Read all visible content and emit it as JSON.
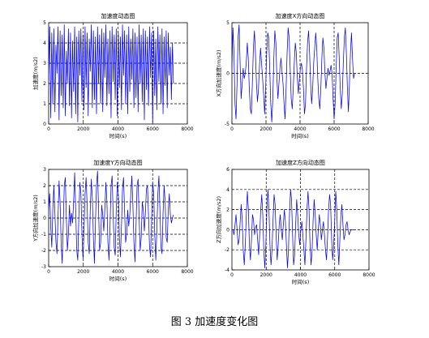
{
  "caption": "图 3  加速度变化图",
  "chart_data": [
    {
      "type": "line",
      "title": "加速度动态图",
      "xlabel": "时间(s)",
      "ylabel": "加速度(m/s2)",
      "xlim": [
        0,
        8000
      ],
      "ylim": [
        0,
        5
      ],
      "xticks": [
        "0",
        "2000",
        "4000",
        "6000",
        "8000"
      ],
      "yticks": [
        "0",
        "1",
        "2",
        "3",
        "4",
        "5"
      ],
      "grid": true,
      "series": [
        {
          "color": "#0000ff",
          "x": [
            0,
            60,
            120,
            180,
            240,
            300,
            360,
            420,
            480,
            540,
            600,
            660,
            720,
            780,
            840,
            900,
            960,
            1020,
            1080,
            1140,
            1200,
            1260,
            1320,
            1380,
            1440,
            1500,
            1560,
            1620,
            1680,
            1740,
            1800,
            1860,
            1920,
            1980,
            2040,
            2100,
            2160,
            2220,
            2280,
            2340,
            2400,
            2460,
            2520,
            2580,
            2640,
            2700,
            2760,
            2820,
            2880,
            2940,
            3000,
            3060,
            3120,
            3180,
            3240,
            3300,
            3360,
            3420,
            3480,
            3540,
            3600,
            3660,
            3720,
            3780,
            3840,
            3900,
            3960,
            4020,
            4080,
            4140,
            4200,
            4260,
            4320,
            4380,
            4440,
            4500,
            4560,
            4620,
            4680,
            4740,
            4800,
            4860,
            4920,
            4980,
            5040,
            5100,
            5160,
            5220,
            5280,
            5340,
            5400,
            5460,
            5520,
            5580,
            5640,
            5700,
            5760,
            5820,
            5880,
            5940,
            6000,
            6060,
            6120,
            6180,
            6240,
            6300,
            6360,
            6420,
            6480,
            6540,
            6600,
            6660,
            6720,
            6780,
            6840,
            6900,
            6960,
            7020,
            7080,
            7140,
            7200
          ],
          "y": [
            2.2,
            4.8,
            0.3,
            4.5,
            1.0,
            4.7,
            0.6,
            3.9,
            2.5,
            4.8,
            0.2,
            4.6,
            1.4,
            4.4,
            0.8,
            4.9,
            0.4,
            3.6,
            2.0,
            4.7,
            0.9,
            4.5,
            0.3,
            4.1,
            1.6,
            4.8,
            0.5,
            4.3,
            0.1,
            4.6,
            2.4,
            4.7,
            1.1,
            4.4,
            0.7,
            4.8,
            1.8,
            4.5,
            0.4,
            4.2,
            2.6,
            4.9,
            0.8,
            4.6,
            1.2,
            4.3,
            0.5,
            4.8,
            2.0,
            4.4,
            1.0,
            4.7,
            0.6,
            4.5,
            2.3,
            4.9,
            0.9,
            4.2,
            1.5,
            4.6,
            0.3,
            4.8,
            2.1,
            4.4,
            1.2,
            4.7,
            0.4,
            4.5,
            1.8,
            4.3,
            0.7,
            4.9,
            2.4,
            4.6,
            1.0,
            4.4,
            0.5,
            4.8,
            1.6,
            4.2,
            2.2,
            4.7,
            0.8,
            4.5,
            1.3,
            4.3,
            0.6,
            4.9,
            2.0,
            4.4,
            1.1,
            4.7,
            0.2,
            4.6,
            1.7,
            4.3,
            0.9,
            4.8,
            2.3,
            4.5,
            0.0,
            4.6,
            1.4,
            4.2,
            0.7,
            4.8,
            2.1,
            4.4,
            1.0,
            4.7,
            0.5,
            4.3,
            1.9,
            4.6,
            0.8,
            4.5,
            2.4,
            3.8,
            1.2,
            4.0,
            2.0
          ]
        }
      ]
    },
    {
      "type": "line",
      "title": "加速度X方向动态图",
      "xlabel": "时间(s)",
      "ylabel": "X方向加速度(m/s2)",
      "xlim": [
        0,
        8000
      ],
      "ylim": [
        -5,
        5
      ],
      "xticks": [
        "0",
        "2000",
        "4000",
        "6000",
        "8000"
      ],
      "yticks": [
        "-5",
        "0",
        "5"
      ],
      "grid": true,
      "series": [
        {
          "color": "#0000ff",
          "x": [
            0,
            60,
            120,
            180,
            240,
            300,
            360,
            420,
            480,
            540,
            600,
            660,
            720,
            780,
            840,
            900,
            960,
            1020,
            1080,
            1140,
            1200,
            1260,
            1320,
            1380,
            1440,
            1500,
            1560,
            1620,
            1680,
            1740,
            1800,
            1860,
            1920,
            1980,
            2040,
            2100,
            2160,
            2220,
            2280,
            2340,
            2400,
            2460,
            2520,
            2580,
            2640,
            2700,
            2760,
            2820,
            2880,
            2940,
            3000,
            3060,
            3120,
            3180,
            3240,
            3300,
            3360,
            3420,
            3480,
            3540,
            3600,
            3660,
            3720,
            3780,
            3840,
            3900,
            3960,
            4020,
            4080,
            4140,
            4200,
            4260,
            4320,
            4380,
            4440,
            4500,
            4560,
            4620,
            4680,
            4740,
            4800,
            4860,
            4920,
            4980,
            5040,
            5100,
            5160,
            5220,
            5280,
            5340,
            5400,
            5460,
            5520,
            5580,
            5640,
            5700,
            5760,
            5820,
            5880,
            5940,
            6000,
            6060,
            6120,
            6180,
            6240,
            6300,
            6360,
            6420,
            6480,
            6540,
            6600,
            6660,
            6720,
            6780,
            6840,
            6900,
            6960,
            7020,
            7080,
            7140,
            7200
          ],
          "y": [
            0.5,
            4.5,
            2.0,
            -3.0,
            -4.5,
            -1.0,
            3.5,
            4.8,
            1.0,
            -2.5,
            -1.0,
            0.5,
            -0.5,
            0.0,
            1.0,
            3.0,
            1.5,
            -1.5,
            -3.5,
            -4.0,
            -1.0,
            2.5,
            4.2,
            2.0,
            -1.0,
            -2.8,
            -1.5,
            0.8,
            2.5,
            1.0,
            -0.5,
            -2.0,
            -4.0,
            -1.5,
            2.0,
            4.0,
            3.5,
            0.5,
            -3.0,
            -4.8,
            -2.5,
            1.5,
            4.2,
            3.0,
            -0.5,
            -2.5,
            -1.0,
            0.5,
            1.5,
            0.2,
            -1.0,
            -3.0,
            -4.5,
            -1.5,
            2.0,
            4.5,
            3.5,
            0.5,
            -2.5,
            -3.5,
            -1.5,
            1.0,
            3.0,
            2.0,
            -0.5,
            -2.0,
            -0.5,
            0.5,
            1.0,
            0.3,
            -1.5,
            -4.0,
            -3.0,
            0.5,
            3.0,
            4.2,
            2.0,
            -1.0,
            -3.0,
            -1.5,
            1.0,
            2.5,
            4.0,
            2.5,
            -0.5,
            -2.5,
            -3.5,
            -1.5,
            1.5,
            3.5,
            2.5,
            0.0,
            -1.5,
            -0.5,
            0.5,
            -0.2,
            0.2,
            0.8,
            0.0,
            -2.5,
            -4.5,
            -3.0,
            0.5,
            3.5,
            4.0,
            1.5,
            -1.5,
            -3.5,
            -2.0,
            1.0,
            3.5,
            4.5,
            2.0,
            -1.5,
            -3.8,
            -1.0,
            2.0,
            4.0,
            1.5,
            -0.5,
            0.0
          ]
        }
      ]
    },
    {
      "type": "line",
      "title": "加速度Y方向动态图",
      "xlabel": "时间(s)",
      "ylabel": "Y方向加速度(m/s2)",
      "xlim": [
        0,
        8000
      ],
      "ylim": [
        -3,
        3
      ],
      "xticks": [
        "0",
        "2000",
        "4000",
        "6000",
        "8000"
      ],
      "yticks": [
        "-3",
        "-2",
        "-1",
        "0",
        "1",
        "2",
        "3"
      ],
      "grid": true,
      "series": [
        {
          "color": "#0000ff",
          "x": [
            0,
            60,
            120,
            180,
            240,
            300,
            360,
            420,
            480,
            540,
            600,
            660,
            720,
            780,
            840,
            900,
            960,
            1020,
            1080,
            1140,
            1200,
            1260,
            1320,
            1380,
            1440,
            1500,
            1560,
            1620,
            1680,
            1740,
            1800,
            1860,
            1920,
            1980,
            2040,
            2100,
            2160,
            2220,
            2280,
            2340,
            2400,
            2460,
            2520,
            2580,
            2640,
            2700,
            2760,
            2820,
            2880,
            2940,
            3000,
            3060,
            3120,
            3180,
            3240,
            3300,
            3360,
            3420,
            3480,
            3540,
            3600,
            3660,
            3720,
            3780,
            3840,
            3900,
            3960,
            4020,
            4080,
            4140,
            4200,
            4260,
            4320,
            4380,
            4440,
            4500,
            4560,
            4620,
            4680,
            4740,
            4800,
            4860,
            4920,
            4980,
            5040,
            5100,
            5160,
            5220,
            5280,
            5340,
            5400,
            5460,
            5520,
            5580,
            5640,
            5700,
            5760,
            5820,
            5880,
            5940,
            6000,
            6060,
            6120,
            6180,
            6240,
            6300,
            6360,
            6420,
            6480,
            6540,
            6600,
            6660,
            6720,
            6780,
            6840,
            6900,
            6960,
            7020,
            7080,
            7140,
            7200
          ],
          "y": [
            0.5,
            1.5,
            -0.5,
            -1.8,
            0.5,
            2.0,
            0.3,
            -1.5,
            -2.2,
            0.0,
            2.3,
            1.0,
            -1.5,
            -2.8,
            -0.5,
            2.0,
            2.5,
            0.0,
            -2.0,
            -1.0,
            0.8,
            -0.5,
            0.3,
            -0.3,
            1.0,
            2.8,
            0.5,
            -2.0,
            -2.6,
            0.0,
            2.2,
            1.5,
            -1.0,
            -2.5,
            -0.8,
            1.5,
            2.5,
            0.8,
            -1.5,
            -2.2,
            0.5,
            2.4,
            1.2,
            -1.2,
            -2.8,
            -0.3,
            2.0,
            2.9,
            0.5,
            -2.0,
            -1.5,
            0.8,
            0.2,
            -0.8,
            0.5,
            2.2,
            1.0,
            -1.5,
            -2.6,
            -0.5,
            2.0,
            2.6,
            0.3,
            -1.8,
            -2.3,
            0.5,
            2.2,
            1.4,
            -1.2,
            -2.4,
            -0.5,
            1.8,
            2.5,
            0.5,
            -1.5,
            -1.0,
            0.5,
            -0.5,
            0.2,
            1.5,
            2.6,
            0.8,
            -1.5,
            -2.7,
            -0.5,
            2.0,
            2.4,
            0.0,
            -2.0,
            -1.2,
            1.0,
            0.5,
            -0.8,
            0.3,
            1.8,
            2.0,
            0.2,
            -1.8,
            -2.4,
            0.0,
            2.2,
            1.5,
            -1.0,
            -2.6,
            -0.8,
            1.5,
            2.6,
            0.5,
            -1.8,
            -2.2,
            0.3,
            2.0,
            1.0,
            -1.2,
            -1.5,
            0.5,
            1.5,
            0.2,
            -0.3,
            0.0,
            0.2
          ]
        }
      ]
    },
    {
      "type": "line",
      "title": "加速度Z方向动态图",
      "xlabel": "时间(s)",
      "ylabel": "Z方向加速度(m/s2)",
      "xlim": [
        0,
        8000
      ],
      "ylim": [
        -4,
        6
      ],
      "xticks": [
        "0",
        "2000",
        "4000",
        "6000",
        "8000"
      ],
      "yticks": [
        "-4",
        "-2",
        "0",
        "2",
        "4",
        "6"
      ],
      "grid": true,
      "series": [
        {
          "color": "#0000ff",
          "x": [
            0,
            60,
            120,
            180,
            240,
            300,
            360,
            420,
            480,
            540,
            600,
            660,
            720,
            780,
            840,
            900,
            960,
            1020,
            1080,
            1140,
            1200,
            1260,
            1320,
            1380,
            1440,
            1500,
            1560,
            1620,
            1680,
            1740,
            1800,
            1860,
            1920,
            1980,
            2040,
            2100,
            2160,
            2220,
            2280,
            2340,
            2400,
            2460,
            2520,
            2580,
            2640,
            2700,
            2760,
            2820,
            2880,
            2940,
            3000,
            3060,
            3120,
            3180,
            3240,
            3300,
            3360,
            3420,
            3480,
            3540,
            3600,
            3660,
            3720,
            3780,
            3840,
            3900,
            3960,
            4020,
            4080,
            4140,
            4200,
            4260,
            4320,
            4380,
            4440,
            4500,
            4560,
            4620,
            4680,
            4740,
            4800,
            4860,
            4920,
            4980,
            5040,
            5100,
            5160,
            5220,
            5280,
            5340,
            5400,
            5460,
            5520,
            5580,
            5640,
            5700,
            5760,
            5820,
            5880,
            5940,
            6000,
            6060,
            6120,
            6180,
            6240,
            6300,
            6360,
            6420,
            6480,
            6540,
            6600,
            6660,
            6720,
            6780,
            6840,
            6900,
            6960,
            7020,
            7080,
            7140,
            7200
          ],
          "y": [
            0.0,
            0.0,
            -0.5,
            0.5,
            1.5,
            0.0,
            -1.5,
            -1.0,
            0.8,
            2.5,
            1.0,
            -2.0,
            -3.5,
            -1.5,
            1.5,
            3.8,
            2.0,
            -1.5,
            -3.0,
            -1.0,
            1.5,
            1.0,
            -0.5,
            0.2,
            0.5,
            -1.0,
            -2.5,
            -0.5,
            2.0,
            3.5,
            1.5,
            -2.0,
            -3.8,
            -1.5,
            2.0,
            4.0,
            2.0,
            -1.5,
            -3.5,
            -2.0,
            1.0,
            3.5,
            2.5,
            -0.5,
            -3.0,
            -1.5,
            0.5,
            1.5,
            0.0,
            -1.0,
            0.5,
            2.0,
            0.8,
            -1.5,
            -3.8,
            -2.0,
            1.5,
            4.0,
            3.0,
            -0.5,
            -3.5,
            -2.5,
            0.5,
            3.0,
            1.5,
            -0.5,
            -1.5,
            0.0,
            0.8,
            -0.5,
            -2.0,
            -3.5,
            -1.0,
            2.0,
            3.8,
            2.0,
            -1.5,
            -3.5,
            -2.0,
            1.0,
            3.0,
            1.5,
            -0.5,
            -2.0,
            0.0,
            1.5,
            0.5,
            -1.0,
            0.0,
            0.8,
            -0.5,
            -2.0,
            -3.0,
            -0.8,
            2.0,
            3.5,
            2.5,
            -1.0,
            -3.0,
            -1.5,
            1.0,
            3.8,
            2.0,
            -1.5,
            -3.5,
            -1.0,
            1.5,
            2.5,
            0.5,
            -1.0,
            -0.5,
            0.5,
            0.8,
            0.0,
            -0.5,
            -0.2,
            0.0,
            0.0,
            0.0,
            0.0,
            0.0
          ]
        }
      ]
    }
  ]
}
